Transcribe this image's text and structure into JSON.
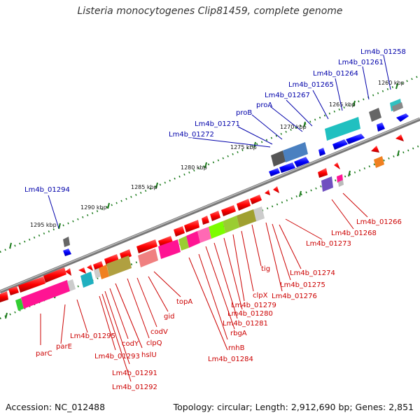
{
  "title": "Listeria monocytogenes Clip81459, complete genome",
  "footer": {
    "accession": "Accession: NC_012488",
    "info": "Topology: circular; Length: 2,912,690 bp; Genes: 2,851"
  },
  "kbp_ticks": [
    "1260 kbp",
    "1265 kbp",
    "1270 kbp",
    "1275 kbp",
    "1280 kbp",
    "1285 kbp",
    "1290 kbp",
    "1295 kbp"
  ],
  "labels_blue": [
    "Lm4b_01258",
    "Lm4b_01261",
    "Lm4b_01264",
    "Lm4b_01265",
    "Lm4b_01267",
    "proA",
    "proB",
    "Lm4b_01271",
    "Lm4b_01272",
    "Lm4b_01294"
  ],
  "labels_red": [
    "Lm4b_01266",
    "Lm4b_01268",
    "Lm4b_01273",
    "Lm4b_01274",
    "Lm4b_01275",
    "Lm4b_01276",
    "tig",
    "clpX",
    "Lm4b_01279",
    "Lm4b_01280",
    "Lm4b_01281",
    "rbgA",
    "rnhB",
    "Lm4b_01284",
    "topA",
    "gid",
    "codV",
    "clpQ",
    "hslU",
    "codY",
    "Lm4b_01291",
    "Lm4b_01292",
    "Lm4b_01293",
    "Lm4b_01295",
    "parE",
    "parC"
  ]
}
